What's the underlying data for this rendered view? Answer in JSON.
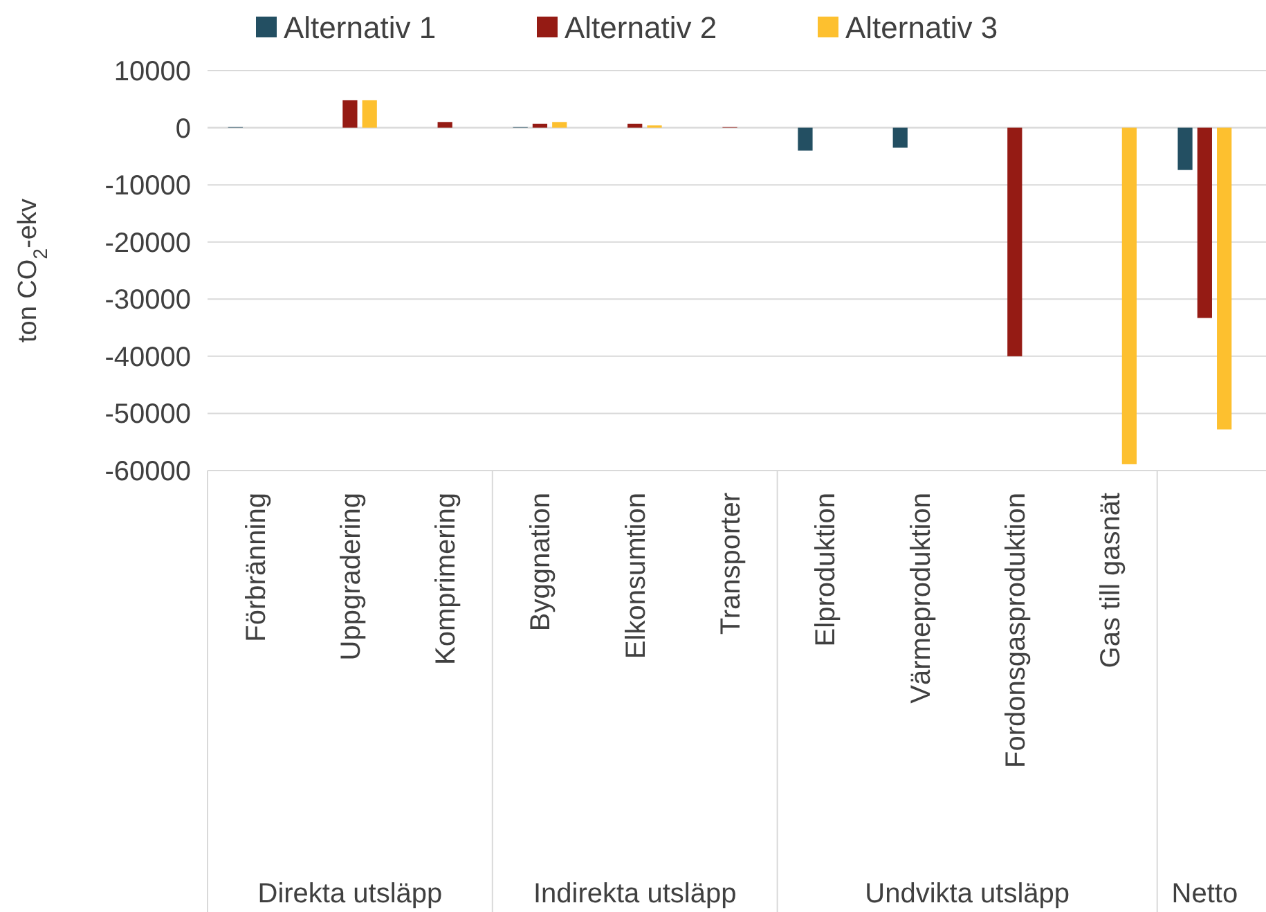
{
  "chart_data": {
    "type": "bar",
    "ylabel": "ton CO$_{2}$-ekv",
    "categories": [
      "Förbränning",
      "Uppgradering",
      "Komprimering",
      "Byggnation",
      "Elkonsumtion",
      "Transporter",
      "Elproduktion",
      "Värmeproduktion",
      "Fordonsgasproduktion",
      "Gas till gasnät",
      null
    ],
    "series": [
      {
        "name": "Alternativ 1",
        "color": "#234f62",
        "values": [
          100,
          0,
          0,
          100,
          0,
          0,
          -4000,
          -3500,
          0,
          0,
          -7400
        ]
      },
      {
        "name": "Alternativ 2",
        "color": "#951b14",
        "values": [
          0,
          4800,
          1000,
          700,
          700,
          100,
          0,
          0,
          -40000,
          0,
          -33300
        ]
      },
      {
        "name": "Alternativ 3",
        "color": "#fdc02f",
        "values": [
          0,
          4800,
          0,
          1000,
          400,
          0,
          0,
          0,
          0,
          -58900,
          -52800
        ]
      }
    ],
    "ylim": [
      -60000,
      10000
    ],
    "yticks": [
      -60000,
      -50000,
      -40000,
      -30000,
      -20000,
      -10000,
      0,
      10000
    ],
    "grid": "y",
    "legend": "top",
    "annotations": [
      "Direkta utsläpp",
      "Indirekta utsläpp",
      "Undvikta utsläpp",
      "Netto"
    ]
  }
}
